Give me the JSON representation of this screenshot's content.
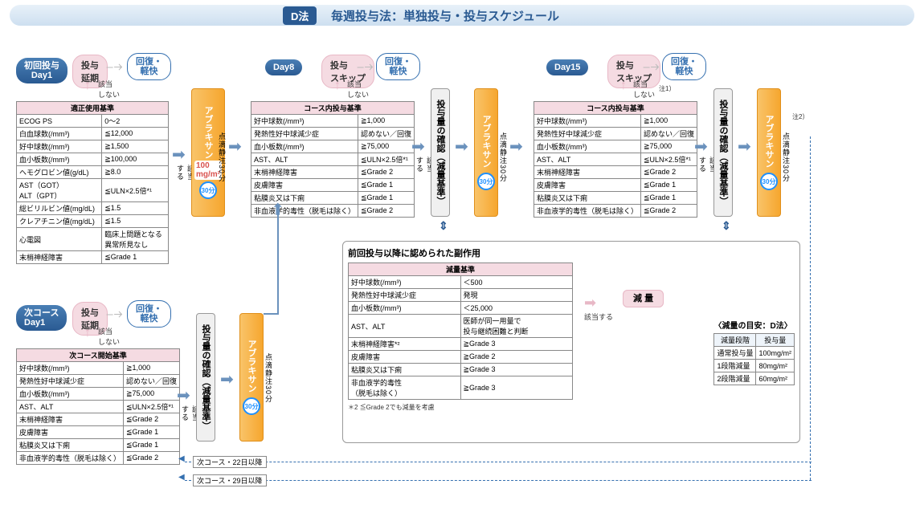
{
  "title": {
    "badge": "D法",
    "text": "毎週投与法：単独投与・投与スケジュール"
  },
  "pills": {
    "day1_first": "初回投与\nDay1",
    "delay": "投与\n延期",
    "recover": "回復・\n軽快",
    "day8": "Day8",
    "skip": "投与\nスキップ",
    "day15": "Day15",
    "next_day1": "次コース\nDay1"
  },
  "labels": {
    "not_applicable": "該当\nしない",
    "applicable": "該当\nする",
    "applicable_h": "該当する",
    "note1": "注1）",
    "note2": "注2）",
    "drug": "アブラキサン",
    "dose100": "100\nmg/m²",
    "thirty": "30分",
    "iv30": "点滴静注30分",
    "confirm_dose": "投与量の確認（減量基準）",
    "prev_side_effects": "前回投与以降に認められた副作用",
    "genryo_std_title": "減量基準",
    "genryo_btn": "減 量",
    "genryo_guide_title": "〈減量の目安：D法〉",
    "star2_note": "＊2 ≦Grade 2でも減量を考慮",
    "return22": "次コース・22日以降",
    "return29": "次コース・29日以降"
  },
  "table_proper": {
    "title": "適正使用基準",
    "rows": [
      [
        "ECOG PS",
        "0～2"
      ],
      [
        "白血球数(/mm³)",
        "≦12,000"
      ],
      [
        "好中球数(/mm³)",
        "≧1,500"
      ],
      [
        "血小板数(/mm³)",
        "≧100,000"
      ],
      [
        "ヘモグロビン値(g/dL)",
        "≧8.0"
      ],
      [
        "AST（GOT）\nALT（GPT）",
        "≦ULN×2.5倍*¹"
      ],
      [
        "総ビリルビン値(mg/dL)",
        "≦1.5"
      ],
      [
        "クレアチニン値(mg/dL)",
        "≦1.5"
      ],
      [
        "心電図",
        "臨床上問題となる\n異常所見なし"
      ],
      [
        "末梢神経障害",
        "≦Grade 1"
      ]
    ]
  },
  "table_course": {
    "title": "コース内投与基準",
    "rows": [
      [
        "好中球数(/mm³)",
        "≧1,000"
      ],
      [
        "発熱性好中球減少症",
        "認めない／回復"
      ],
      [
        "血小板数(/mm³)",
        "≧75,000"
      ],
      [
        "AST、ALT",
        "≦ULN×2.5倍*¹"
      ],
      [
        "末梢神経障害",
        "≦Grade 2"
      ],
      [
        "皮膚障害",
        "≦Grade 1"
      ],
      [
        "粘膜炎又は下痢",
        "≦Grade 1"
      ],
      [
        "非血液学的毒性（脱毛は除く）",
        "≦Grade 2"
      ]
    ]
  },
  "table_next": {
    "title": "次コース開始基準",
    "rows": [
      [
        "好中球数(/mm³)",
        "≧1,000"
      ],
      [
        "発熱性好中球減少症",
        "認めない／回復"
      ],
      [
        "血小板数(/mm³)",
        "≧75,000"
      ],
      [
        "AST、ALT",
        "≦ULN×2.5倍*¹"
      ],
      [
        "末梢神経障害",
        "≦Grade 2"
      ],
      [
        "皮膚障害",
        "≦Grade 1"
      ],
      [
        "粘膜炎又は下痢",
        "≦Grade 1"
      ],
      [
        "非血液学的毒性（脱毛は除く）",
        "≦Grade 2"
      ]
    ]
  },
  "table_reduce": {
    "rows": [
      [
        "好中球数(/mm³)",
        "＜500"
      ],
      [
        "発熱性好中球減少症",
        "発現"
      ],
      [
        "血小板数(/mm³)",
        "＜25,000"
      ],
      [
        "AST、ALT",
        "医師が同一用量で\n投与継続困難と判断"
      ],
      [
        "末梢神経障害*²",
        "≧Grade 3"
      ],
      [
        "皮膚障害",
        "≧Grade 2"
      ],
      [
        "粘膜炎又は下痢",
        "≧Grade 3"
      ],
      [
        "非血液学的毒性\n（脱毛は除く）",
        "≧Grade 3"
      ]
    ]
  },
  "table_guide": {
    "headers": [
      "減量段階",
      "投与量"
    ],
    "rows": [
      [
        "通常投与量",
        "100mg/m²"
      ],
      [
        "1段階減量",
        "80mg/m²"
      ],
      [
        "2段階減量",
        "60mg/m²"
      ]
    ]
  },
  "colors": {
    "blue": "#2a5a92",
    "lightblue": "#3570b0",
    "pink": "#f5dbe2",
    "orange": "#f6a62e",
    "arrow": "#6b92bd",
    "bg": "#ffffff"
  }
}
